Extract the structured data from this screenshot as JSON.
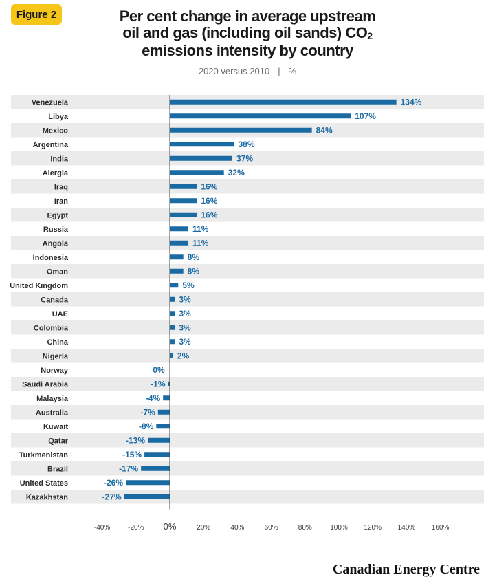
{
  "figure_label": "Figure 2",
  "title_lines": [
    "Per cent change in average upstream",
    "oil and gas (including oil sands) CO",
    "emissions intensity by country"
  ],
  "title_subscript": "2",
  "subtitle_left": "2020 versus 2010",
  "subtitle_sep": "|",
  "subtitle_right": "%",
  "brand": "Canadian Energy Centre",
  "colors": {
    "bar": "#1a6aa4",
    "label": "#1a6aa4",
    "stripe": "#ebebeb",
    "axis": "#444444"
  },
  "chart_data": {
    "type": "bar",
    "orientation": "horizontal",
    "categories": [
      "Venezuela",
      "Libya",
      "Mexico",
      "Argentina",
      "India",
      "Alergia",
      "Iraq",
      "Iran",
      "Egypt",
      "Russia",
      "Angola",
      "Indonesia",
      "Oman",
      "United Kingdom",
      "Canada",
      "UAE",
      "Colombia",
      "China",
      "Nigeria",
      "Norway",
      "Saudi Arabia",
      "Malaysia",
      "Australia",
      "Kuwait",
      "Qatar",
      "Turkmenistan",
      "Brazil",
      "United States",
      "Kazakhstan"
    ],
    "values": [
      134,
      107,
      84,
      38,
      37,
      32,
      16,
      16,
      16,
      11,
      11,
      8,
      8,
      5,
      3,
      3,
      3,
      3,
      2,
      0,
      -1,
      -4,
      -7,
      -8,
      -13,
      -15,
      -17,
      -26,
      -27
    ],
    "value_labels": [
      "134%",
      "107%",
      "84%",
      "38%",
      "37%",
      "32%",
      "16%",
      "16%",
      "16%",
      "11%",
      "11%",
      "8%",
      "8%",
      "5%",
      "3%",
      "3%",
      "3%",
      "3%",
      "2%",
      "0%",
      "-1%",
      "-4%",
      "-7%",
      "-8%",
      "-13%",
      "-15%",
      "-17%",
      "-26%",
      "-27%"
    ],
    "xlim": [
      -40,
      160
    ],
    "xticks": [
      -40,
      -20,
      0,
      20,
      40,
      60,
      80,
      100,
      120,
      140,
      160
    ],
    "xtick_labels": [
      "-40%",
      "-20%",
      "0%",
      "20%",
      "40%",
      "60%",
      "80%",
      "100%",
      "120%",
      "140%",
      "160%"
    ],
    "grid": false
  }
}
